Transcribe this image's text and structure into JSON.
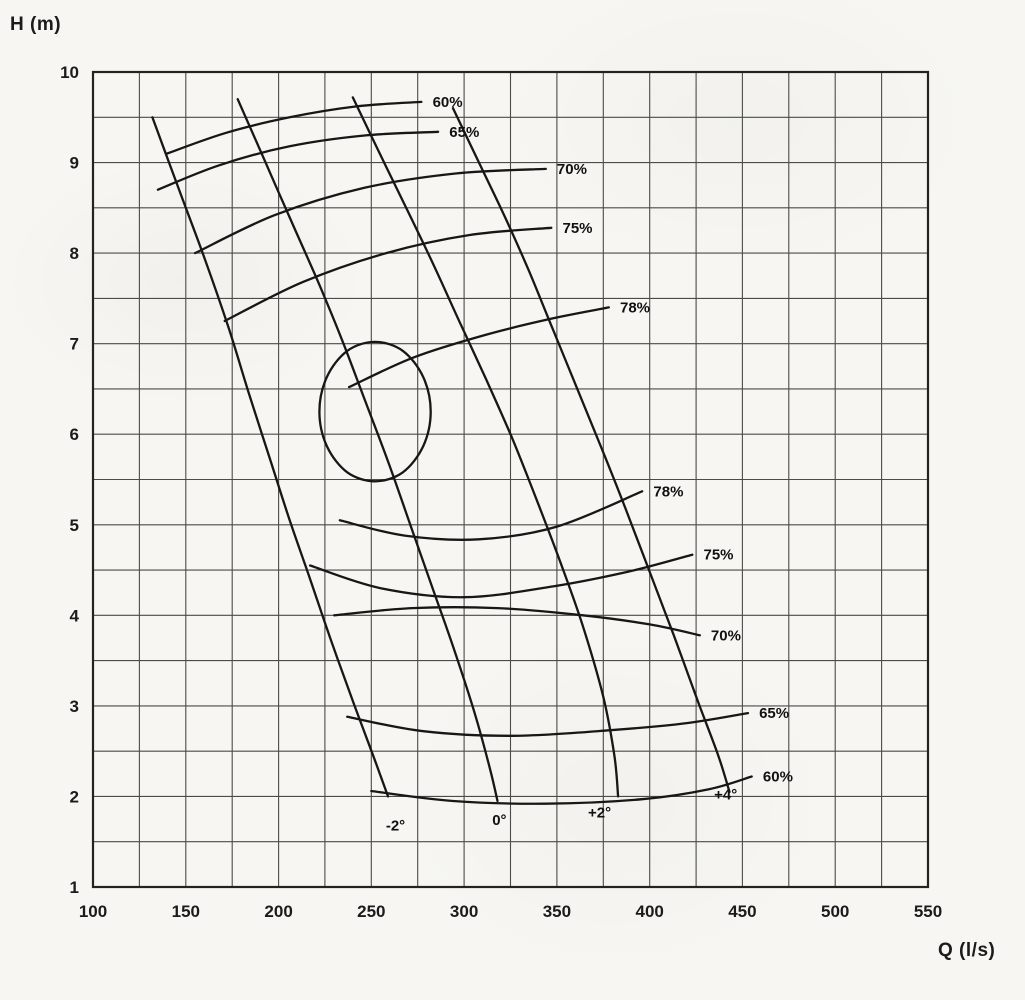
{
  "chart_data": {
    "type": "line",
    "xlabel": "Q (l/s)",
    "ylabel": "H (m)",
    "xlim": [
      100,
      550
    ],
    "ylim": [
      1,
      10
    ],
    "x_ticks": [
      100,
      150,
      200,
      250,
      300,
      350,
      400,
      450,
      500,
      550
    ],
    "y_ticks": [
      1,
      2,
      3,
      4,
      5,
      6,
      7,
      8,
      9,
      10
    ],
    "grid": {
      "x_step": 25,
      "y_step": 0.5,
      "on": true
    },
    "legend": "none",
    "colors": {
      "grid": "#4b4b48",
      "axis": "#232320",
      "curve": "#171715",
      "background": "#f7f6f2",
      "text": "#1b1b1b"
    },
    "series": [
      {
        "name": "blade-angle-minus2deg",
        "label": "-2°",
        "points": [
          [
            132,
            9.5
          ],
          [
            146,
            8.72
          ],
          [
            160,
            7.95
          ],
          [
            173,
            7.18
          ],
          [
            184,
            6.45
          ],
          [
            195,
            5.75
          ],
          [
            206,
            5.05
          ],
          [
            217,
            4.4
          ],
          [
            229,
            3.68
          ],
          [
            241,
            3.0
          ],
          [
            251,
            2.45
          ],
          [
            259,
            2.0
          ]
        ]
      },
      {
        "name": "blade-angle-0deg",
        "label": "0°",
        "points": [
          [
            178,
            9.7
          ],
          [
            193,
            9.0
          ],
          [
            208,
            8.3
          ],
          [
            222,
            7.65
          ],
          [
            235,
            7.0
          ],
          [
            247,
            6.35
          ],
          [
            259,
            5.7
          ],
          [
            271,
            5.0
          ],
          [
            283,
            4.3
          ],
          [
            295,
            3.6
          ],
          [
            306,
            2.9
          ],
          [
            314,
            2.3
          ],
          [
            318,
            1.95
          ]
        ]
      },
      {
        "name": "blade-angle-plus2deg",
        "label": "+2°",
        "points": [
          [
            240,
            9.72
          ],
          [
            255,
            9.08
          ],
          [
            270,
            8.45
          ],
          [
            284,
            7.85
          ],
          [
            298,
            7.22
          ],
          [
            312,
            6.6
          ],
          [
            326,
            5.95
          ],
          [
            339,
            5.28
          ],
          [
            352,
            4.58
          ],
          [
            364,
            3.88
          ],
          [
            375,
            3.1
          ],
          [
            381,
            2.45
          ],
          [
            383,
            2.0
          ]
        ]
      },
      {
        "name": "blade-angle-plus4deg",
        "label": "+4°",
        "points": [
          [
            294,
            9.6
          ],
          [
            308,
            9.0
          ],
          [
            322,
            8.4
          ],
          [
            335,
            7.8
          ],
          [
            348,
            7.15
          ],
          [
            361,
            6.5
          ],
          [
            374,
            5.85
          ],
          [
            387,
            5.18
          ],
          [
            400,
            4.48
          ],
          [
            413,
            3.78
          ],
          [
            426,
            3.05
          ],
          [
            437,
            2.45
          ],
          [
            443,
            2.05
          ]
        ]
      },
      {
        "name": "efficiency-60pct-upper",
        "label": "60%",
        "points": [
          [
            140,
            9.1
          ],
          [
            172,
            9.33
          ],
          [
            206,
            9.5
          ],
          [
            242,
            9.62
          ],
          [
            277,
            9.67
          ]
        ]
      },
      {
        "name": "efficiency-65pct-upper",
        "label": "65%",
        "points": [
          [
            135,
            8.7
          ],
          [
            168,
            8.97
          ],
          [
            206,
            9.18
          ],
          [
            247,
            9.3
          ],
          [
            286,
            9.34
          ]
        ]
      },
      {
        "name": "efficiency-70pct-upper",
        "label": "70%",
        "points": [
          [
            155,
            8.0
          ],
          [
            198,
            8.42
          ],
          [
            246,
            8.72
          ],
          [
            296,
            8.88
          ],
          [
            344,
            8.93
          ]
        ]
      },
      {
        "name": "efficiency-75pct-upper",
        "label": "75%",
        "points": [
          [
            171,
            7.25
          ],
          [
            213,
            7.68
          ],
          [
            258,
            8.0
          ],
          [
            303,
            8.2
          ],
          [
            347,
            8.28
          ]
        ]
      },
      {
        "name": "efficiency-78pct-upper",
        "label": "78%",
        "points": [
          [
            238,
            6.52
          ],
          [
            273,
            6.85
          ],
          [
            312,
            7.1
          ],
          [
            348,
            7.28
          ],
          [
            378,
            7.4
          ]
        ]
      },
      {
        "name": "efficiency-78pct-lower",
        "label": "78%",
        "points": [
          [
            233,
            5.05
          ],
          [
            268,
            4.88
          ],
          [
            308,
            4.84
          ],
          [
            350,
            4.98
          ],
          [
            396,
            5.37
          ]
        ]
      },
      {
        "name": "efficiency-75pct-lower",
        "label": "75%",
        "points": [
          [
            217,
            4.55
          ],
          [
            255,
            4.3
          ],
          [
            300,
            4.2
          ],
          [
            348,
            4.32
          ],
          [
            388,
            4.48
          ],
          [
            423,
            4.67
          ]
        ]
      },
      {
        "name": "efficiency-70pct-lower",
        "label": "70%",
        "points": [
          [
            230,
            4.0
          ],
          [
            272,
            4.08
          ],
          [
            318,
            4.08
          ],
          [
            364,
            4.0
          ],
          [
            400,
            3.9
          ],
          [
            427,
            3.78
          ]
        ]
      },
      {
        "name": "efficiency-65pct-lower",
        "label": "65%",
        "points": [
          [
            237,
            2.88
          ],
          [
            278,
            2.72
          ],
          [
            326,
            2.67
          ],
          [
            378,
            2.73
          ],
          [
            420,
            2.81
          ],
          [
            453,
            2.92
          ]
        ]
      },
      {
        "name": "efficiency-60pct-lower",
        "label": "60%",
        "points": [
          [
            250,
            2.06
          ],
          [
            294,
            1.95
          ],
          [
            344,
            1.92
          ],
          [
            396,
            1.97
          ],
          [
            432,
            2.08
          ],
          [
            455,
            2.22
          ]
        ]
      },
      {
        "name": "efficiency-best-point-loop",
        "label": "",
        "closed": true,
        "points": [
          [
            282,
            6.25
          ],
          [
            278,
            6.63
          ],
          [
            267,
            6.92
          ],
          [
            252,
            7.02
          ],
          [
            237,
            6.92
          ],
          [
            226,
            6.63
          ],
          [
            222,
            6.25
          ],
          [
            226,
            5.87
          ],
          [
            237,
            5.58
          ],
          [
            252,
            5.48
          ],
          [
            267,
            5.58
          ],
          [
            278,
            5.87
          ]
        ]
      }
    ],
    "curve_labels": [
      {
        "text": "60%",
        "q": 283,
        "h": 9.67,
        "anchor": "start"
      },
      {
        "text": "65%",
        "q": 292,
        "h": 9.34,
        "anchor": "start"
      },
      {
        "text": "70%",
        "q": 350,
        "h": 8.93,
        "anchor": "start"
      },
      {
        "text": "75%",
        "q": 353,
        "h": 8.28,
        "anchor": "start"
      },
      {
        "text": "78%",
        "q": 384,
        "h": 7.4,
        "anchor": "start"
      },
      {
        "text": "78%",
        "q": 402,
        "h": 5.37,
        "anchor": "start"
      },
      {
        "text": "75%",
        "q": 429,
        "h": 4.67,
        "anchor": "start"
      },
      {
        "text": "70%",
        "q": 433,
        "h": 3.78,
        "anchor": "start"
      },
      {
        "text": "65%",
        "q": 459,
        "h": 2.92,
        "anchor": "start"
      },
      {
        "text": "60%",
        "q": 461,
        "h": 2.22,
        "anchor": "start"
      },
      {
        "text": "-2°",
        "q": 263,
        "h": 1.68,
        "anchor": "middle"
      },
      {
        "text": "0°",
        "q": 319,
        "h": 1.74,
        "anchor": "middle"
      },
      {
        "text": "+2°",
        "q": 373,
        "h": 1.82,
        "anchor": "middle"
      },
      {
        "text": "+4°",
        "q": 441,
        "h": 2.02,
        "anchor": "middle"
      }
    ]
  }
}
